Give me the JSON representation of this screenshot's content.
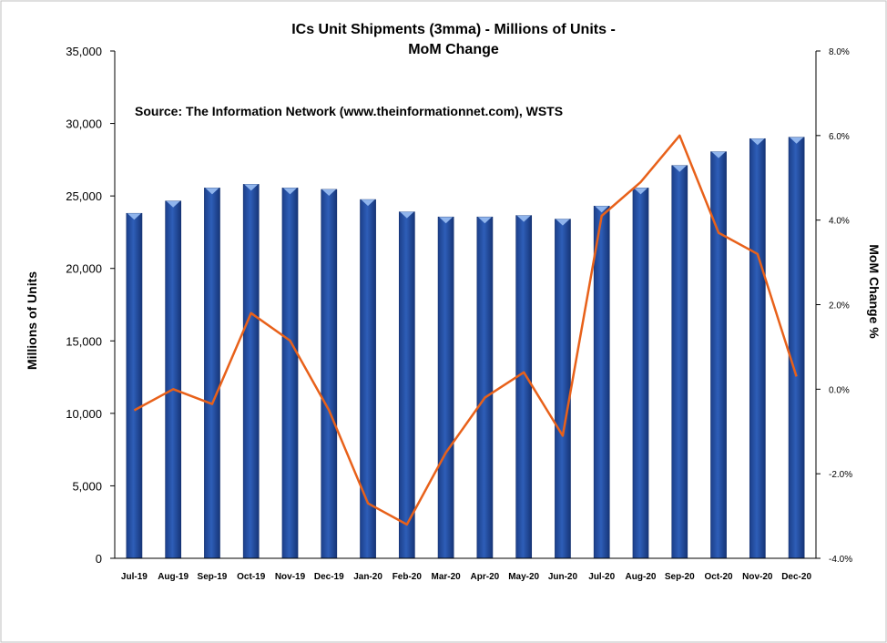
{
  "chart_data": {
    "type": "bar",
    "title_line1": "ICs Unit Shipments (3mma) - Millions of Units -",
    "title_line2": "MoM Change",
    "source_note": "Source: The Information Network (www.theinformationnet.com), WSTS",
    "categories": [
      "Jul-19",
      "Aug-19",
      "Sep-19",
      "Oct-19",
      "Nov-19",
      "Dec-19",
      "Jan-20",
      "Feb-20",
      "Mar-20",
      "Apr-20",
      "May-20",
      "Jun-20",
      "Jul-20",
      "Aug-20",
      "Sep-20",
      "Oct-20",
      "Nov-20",
      "Dec-20"
    ],
    "series": [
      {
        "type": "bar",
        "axis": "left",
        "color": "#2E5EB8",
        "values": [
          23800,
          24650,
          25550,
          25800,
          25550,
          25450,
          24750,
          23900,
          23550,
          23550,
          23650,
          23400,
          24300,
          25550,
          27100,
          28050,
          28950,
          29050
        ]
      },
      {
        "type": "line",
        "axis": "right",
        "color": "#E8611A",
        "values": [
          -0.5,
          0.0,
          -0.35,
          1.8,
          1.15,
          -0.5,
          -2.7,
          -3.2,
          -1.5,
          -0.2,
          0.4,
          -1.1,
          4.1,
          4.9,
          6.0,
          3.7,
          3.2,
          0.3
        ]
      }
    ],
    "ylabel": "Millions of Units",
    "ylabel_right": "MoM Change %",
    "ylim": [
      0,
      35000
    ],
    "ylim_right": [
      -4.0,
      8.0
    ],
    "yticks": [
      "0",
      "5,000",
      "10,000",
      "15,000",
      "20,000",
      "25,000",
      "30,000",
      "35,000"
    ],
    "yticks_right": [
      "-4.0%",
      "-2.0%",
      "0.0%",
      "2.0%",
      "4.0%",
      "6.0%",
      "8.0%"
    ],
    "grid": false,
    "legend": "none"
  }
}
